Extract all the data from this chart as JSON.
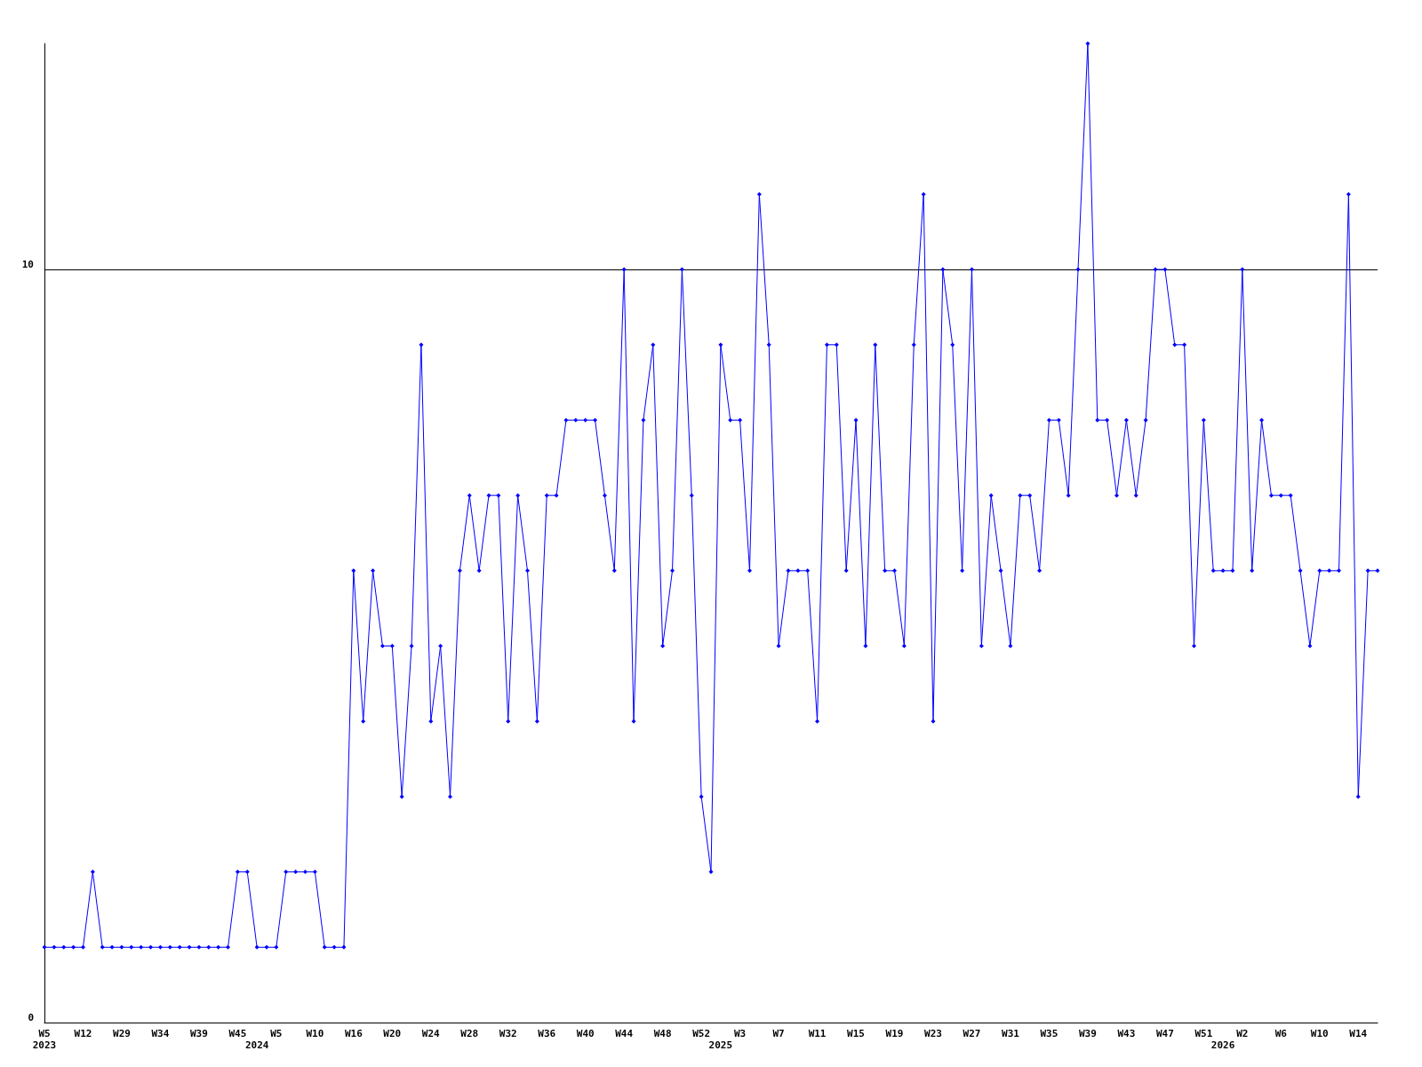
{
  "chart_data": {
    "type": "line",
    "categories": [
      "W5\n2023",
      null,
      null,
      null,
      "W12",
      null,
      null,
      null,
      "W29",
      null,
      null,
      null,
      "W34",
      null,
      null,
      null,
      "W39",
      null,
      null,
      null,
      "W45",
      null,
      "\n2024",
      null,
      "W5",
      null,
      null,
      null,
      "W10",
      null,
      null,
      null,
      "W16",
      null,
      null,
      null,
      "W20",
      null,
      null,
      null,
      "W24",
      null,
      null,
      null,
      "W28",
      null,
      null,
      null,
      "W32",
      null,
      null,
      null,
      "W36",
      null,
      null,
      null,
      "W40",
      null,
      null,
      null,
      "W44",
      null,
      null,
      null,
      "W48",
      null,
      null,
      null,
      "W52",
      null,
      "\n2025",
      null,
      "W3",
      null,
      null,
      null,
      "W7",
      null,
      null,
      null,
      "W11",
      null,
      null,
      null,
      "W15",
      null,
      null,
      null,
      "W19",
      null,
      null,
      null,
      "W23",
      null,
      null,
      null,
      "W27",
      null,
      null,
      null,
      "W31",
      null,
      null,
      null,
      "W35",
      null,
      null,
      null,
      "W39",
      null,
      null,
      null,
      "W43",
      null,
      null,
      null,
      "W47",
      null,
      null,
      null,
      "W51",
      null,
      "\n2026",
      null,
      "W2",
      null,
      null,
      null,
      "W6",
      null,
      null,
      null,
      "W10",
      null,
      null,
      null,
      "W14",
      null,
      null
    ],
    "series": [
      {
        "color": "#0000ff",
        "values": [
          1,
          1,
          1,
          1,
          1,
          2,
          1,
          1,
          1,
          1,
          1,
          1,
          1,
          1,
          1,
          1,
          1,
          1,
          1,
          1,
          2,
          2,
          1,
          1,
          1,
          2,
          2,
          2,
          2,
          1,
          1,
          1,
          6,
          4,
          6,
          5,
          5,
          3,
          5,
          9,
          4,
          5,
          3,
          6,
          7,
          6,
          7,
          7,
          4,
          7,
          6,
          4,
          7,
          7,
          8,
          8,
          8,
          8,
          7,
          6,
          10,
          4,
          8,
          9,
          5,
          6,
          10,
          7,
          3,
          2,
          9,
          8,
          8,
          6,
          11,
          9,
          5,
          6,
          6,
          6,
          4,
          9,
          9,
          6,
          8,
          5,
          9,
          6,
          6,
          5,
          9,
          11,
          4,
          10,
          9,
          6,
          10,
          5,
          7,
          6,
          5,
          7,
          7,
          6,
          8,
          8,
          7,
          10,
          13,
          8,
          8,
          7,
          8,
          7,
          8,
          10,
          10,
          9,
          9,
          5,
          8,
          6,
          6,
          6,
          10,
          6,
          8,
          7,
          7,
          7,
          6,
          5,
          6,
          6,
          6,
          11,
          3,
          6,
          6
        ]
      }
    ],
    "ylim": [
      0,
      13
    ],
    "yticks": [
      0,
      10
    ],
    "grid": "y",
    "marker": "diamond",
    "line_style": "solid"
  }
}
